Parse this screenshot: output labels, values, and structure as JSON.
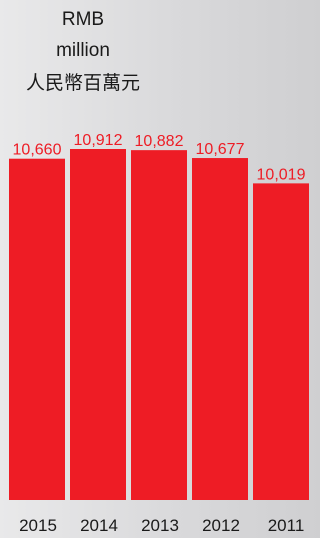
{
  "unit_lines": [
    "RMB",
    "million",
    "人民幣百萬元"
  ],
  "colors": {
    "bar": "#ee1c25",
    "value_label": "#ee1c25",
    "axis_text": "#1a1a1a"
  },
  "chart_data": {
    "type": "bar",
    "categories": [
      "2015",
      "2014",
      "2013",
      "2012",
      "2011"
    ],
    "values": [
      10660,
      10912,
      10882,
      10677,
      10019
    ],
    "value_labels": [
      "10,660",
      "10,912",
      "10,882",
      "10,677",
      "10,019"
    ],
    "title": "",
    "ylabel": "RMB million 人民幣百萬元",
    "xlabel": "",
    "grid": false,
    "legend": "none"
  }
}
